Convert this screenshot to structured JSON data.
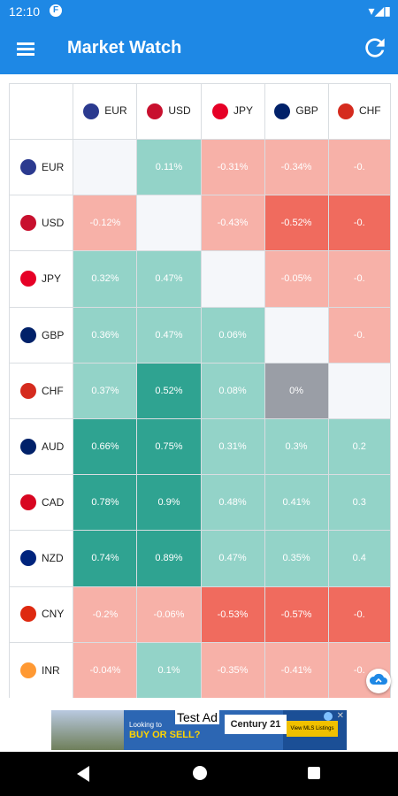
{
  "status": {
    "time": "12:10",
    "notif_icon": "F",
    "system_icons": "▾◢▮"
  },
  "appbar": {
    "title": "Market Watch"
  },
  "currencies": [
    {
      "code": "EUR",
      "flag": "eu-flag-icon",
      "color": "#2b3a8f"
    },
    {
      "code": "USD",
      "flag": "us-flag-icon",
      "color": "#c8102e"
    },
    {
      "code": "JPY",
      "flag": "jp-flag-icon",
      "color": "#e60026"
    },
    {
      "code": "GBP",
      "flag": "gb-flag-icon",
      "color": "#012169"
    },
    {
      "code": "CHF",
      "flag": "ch-flag-icon",
      "color": "#d52b1e"
    },
    {
      "code": "AUD",
      "flag": "au-flag-icon",
      "color": "#012169"
    },
    {
      "code": "CAD",
      "flag": "ca-flag-icon",
      "color": "#d80621"
    },
    {
      "code": "NZD",
      "flag": "nz-flag-icon",
      "color": "#00247d"
    },
    {
      "code": "CNY",
      "flag": "cn-flag-icon",
      "color": "#de2910"
    },
    {
      "code": "INR",
      "flag": "in-flag-icon",
      "color": "#ff9933"
    }
  ],
  "columns": [
    "EUR",
    "USD",
    "JPY",
    "GBP",
    "CHF"
  ],
  "matrix": [
    {
      "row": "EUR",
      "cells": [
        "",
        "0.11%",
        "-0.31%",
        "-0.34%",
        "-0."
      ]
    },
    {
      "row": "USD",
      "cells": [
        "-0.12%",
        "",
        "-0.43%",
        "-0.52%",
        "-0."
      ]
    },
    {
      "row": "JPY",
      "cells": [
        "0.32%",
        "0.47%",
        "",
        "-0.05%",
        "-0."
      ]
    },
    {
      "row": "GBP",
      "cells": [
        "0.36%",
        "0.47%",
        "0.06%",
        "",
        "-0."
      ]
    },
    {
      "row": "CHF",
      "cells": [
        "0.37%",
        "0.52%",
        "0.08%",
        "0%",
        ""
      ]
    },
    {
      "row": "AUD",
      "cells": [
        "0.66%",
        "0.75%",
        "0.31%",
        "0.3%",
        "0.2"
      ]
    },
    {
      "row": "CAD",
      "cells": [
        "0.78%",
        "0.9%",
        "0.48%",
        "0.41%",
        "0.3"
      ]
    },
    {
      "row": "NZD",
      "cells": [
        "0.74%",
        "0.89%",
        "0.47%",
        "0.35%",
        "0.4"
      ]
    },
    {
      "row": "CNY",
      "cells": [
        "-0.2%",
        "-0.06%",
        "-0.53%",
        "-0.57%",
        "-0."
      ]
    },
    {
      "row": "INR",
      "cells": [
        "-0.04%",
        "0.1%",
        "-0.35%",
        "-0.41%",
        "-0."
      ]
    }
  ],
  "cell_colors": [
    [
      "#f5f7fa",
      "#93d3c8",
      "#f7b1a8",
      "#f7b1a8",
      "#f7b1a8"
    ],
    [
      "#f7b1a8",
      "#f5f7fa",
      "#f7b1a8",
      "#f06b5e",
      "#f06b5e"
    ],
    [
      "#93d3c8",
      "#93d3c8",
      "#f5f7fa",
      "#f7b1a8",
      "#f7b1a8"
    ],
    [
      "#93d3c8",
      "#93d3c8",
      "#93d3c8",
      "#f5f7fa",
      "#f7b1a8"
    ],
    [
      "#93d3c8",
      "#2fa391",
      "#93d3c8",
      "#9a9ea6",
      "#f5f7fa"
    ],
    [
      "#2fa391",
      "#2fa391",
      "#93d3c8",
      "#93d3c8",
      "#93d3c8"
    ],
    [
      "#2fa391",
      "#2fa391",
      "#93d3c8",
      "#93d3c8",
      "#93d3c8"
    ],
    [
      "#2fa391",
      "#2fa391",
      "#93d3c8",
      "#93d3c8",
      "#93d3c8"
    ],
    [
      "#f7b1a8",
      "#f7b1a8",
      "#f06b5e",
      "#f06b5e",
      "#f06b5e"
    ],
    [
      "#f7b1a8",
      "#93d3c8",
      "#f7b1a8",
      "#f7b1a8",
      "#f7b1a8"
    ]
  ],
  "ad": {
    "test_label": "Test Ad",
    "line1": "Looking to",
    "line2": "BUY OR SELL?",
    "brand": "Century 21",
    "cta": "View MLS Listings"
  }
}
